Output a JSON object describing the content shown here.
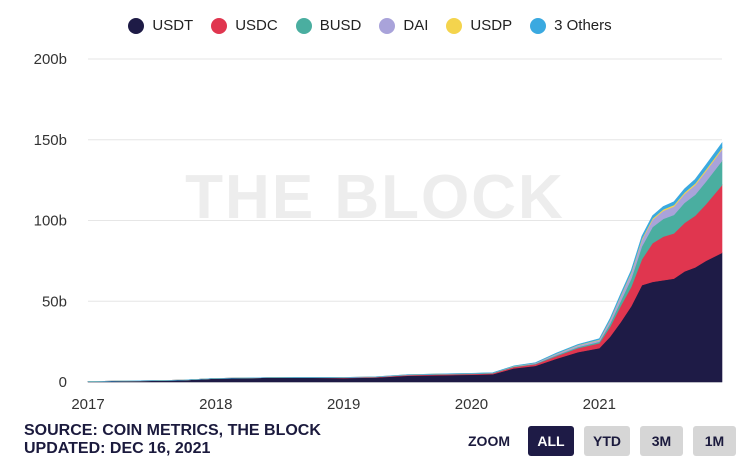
{
  "legend": [
    {
      "name": "USDT",
      "color": "#1e1b46"
    },
    {
      "name": "USDC",
      "color": "#e0364f"
    },
    {
      "name": "BUSD",
      "color": "#4aaea0"
    },
    {
      "name": "DAI",
      "color": "#a9a3da"
    },
    {
      "name": "USDP",
      "color": "#f4d44d"
    },
    {
      "name": "3 Others",
      "color": "#3aa9e0"
    }
  ],
  "watermark": "THE BLOCK",
  "footer": {
    "source_line": "SOURCE: COIN METRICS, THE BLOCK",
    "updated_line": "UPDATED: DEC 16, 2021"
  },
  "zoom": {
    "label": "ZOOM",
    "buttons": [
      {
        "label": "ALL",
        "active": true
      },
      {
        "label": "YTD",
        "active": false
      },
      {
        "label": "3M",
        "active": false
      },
      {
        "label": "1M",
        "active": false
      }
    ]
  },
  "chart_data": {
    "type": "area",
    "stacked": true,
    "xlabel": "",
    "ylabel": "",
    "x_ticks": [
      "2017",
      "2018",
      "2019",
      "2020",
      "2021"
    ],
    "y_ticks": [
      "0",
      "50b",
      "100b",
      "150b",
      "200b"
    ],
    "ylim": [
      0,
      200
    ],
    "grid": true,
    "legend_position": "top-center",
    "x": [
      "2017-01",
      "2017-04",
      "2017-07",
      "2017-10",
      "2018-01",
      "2018-04",
      "2018-07",
      "2018-10",
      "2019-01",
      "2019-04",
      "2019-07",
      "2019-10",
      "2020-01",
      "2020-03",
      "2020-05",
      "2020-07",
      "2020-09",
      "2020-11",
      "2021-01",
      "2021-02",
      "2021-03",
      "2021-04",
      "2021-05",
      "2021-06",
      "2021-07",
      "2021-08",
      "2021-09",
      "2021-10",
      "2021-11",
      "2021-12"
    ],
    "series": [
      {
        "name": "USDT",
        "color": "#1e1b46",
        "values": [
          0.3,
          0.6,
          0.8,
          1.2,
          2.2,
          2.5,
          2.8,
          2.7,
          2.4,
          2.8,
          3.9,
          4.2,
          4.5,
          4.8,
          8.5,
          10.0,
          14.5,
          18.5,
          21.0,
          28.0,
          37.0,
          47.0,
          60.0,
          62.0,
          63.0,
          64.0,
          68.5,
          71.0,
          75.0,
          80.0
        ]
      },
      {
        "name": "USDC",
        "color": "#e0364f",
        "values": [
          0.0,
          0.0,
          0.0,
          0.0,
          0.0,
          0.0,
          0.0,
          0.2,
          0.3,
          0.3,
          0.4,
          0.5,
          0.5,
          0.6,
          0.8,
          1.0,
          1.6,
          2.5,
          3.0,
          6.0,
          10.0,
          12.0,
          16.0,
          24.0,
          27.0,
          28.0,
          30.0,
          32.0,
          35.0,
          42.0
        ]
      },
      {
        "name": "BUSD",
        "color": "#4aaea0",
        "values": [
          0.0,
          0.0,
          0.0,
          0.0,
          0.0,
          0.0,
          0.0,
          0.0,
          0.0,
          0.0,
          0.1,
          0.2,
          0.2,
          0.2,
          0.3,
          0.3,
          0.6,
          0.7,
          0.9,
          2.0,
          3.0,
          5.0,
          8.0,
          10.0,
          11.0,
          11.5,
          12.5,
          13.0,
          14.0,
          15.0
        ]
      },
      {
        "name": "DAI",
        "color": "#a9a3da",
        "values": [
          0.0,
          0.0,
          0.0,
          0.0,
          0.0,
          0.0,
          0.0,
          0.0,
          0.1,
          0.1,
          0.1,
          0.1,
          0.1,
          0.1,
          0.2,
          0.4,
          0.8,
          1.0,
          1.1,
          2.0,
          3.0,
          3.5,
          4.0,
          4.5,
          5.0,
          5.2,
          5.5,
          6.0,
          6.5,
          7.0
        ]
      },
      {
        "name": "USDP",
        "color": "#f4d44d",
        "values": [
          0.0,
          0.0,
          0.0,
          0.0,
          0.0,
          0.0,
          0.0,
          0.0,
          0.0,
          0.0,
          0.0,
          0.0,
          0.0,
          0.0,
          0.1,
          0.1,
          0.2,
          0.2,
          0.3,
          0.4,
          0.5,
          0.6,
          0.8,
          0.8,
          0.9,
          0.9,
          0.9,
          1.0,
          1.0,
          1.0
        ]
      },
      {
        "name": "3 Others",
        "color": "#3aa9e0",
        "values": [
          0.0,
          0.0,
          0.0,
          0.0,
          0.0,
          0.0,
          0.0,
          0.0,
          0.0,
          0.0,
          0.0,
          0.0,
          0.1,
          0.1,
          0.1,
          0.2,
          0.3,
          0.4,
          0.5,
          0.8,
          1.0,
          1.2,
          1.5,
          1.7,
          1.8,
          2.0,
          2.2,
          2.5,
          2.8,
          3.0
        ]
      }
    ]
  }
}
